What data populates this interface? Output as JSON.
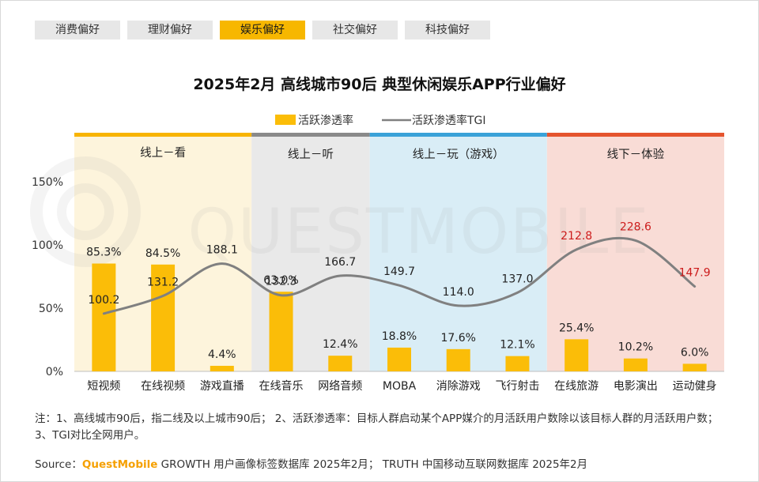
{
  "tabs": [
    {
      "label": "消费偏好",
      "active": false
    },
    {
      "label": "理财偏好",
      "active": false
    },
    {
      "label": "娱乐偏好",
      "active": true
    },
    {
      "label": "社交偏好",
      "active": false
    },
    {
      "label": "科技偏好",
      "active": false
    }
  ],
  "watermark": "QUESTMOBILE",
  "chart_data": {
    "type": "bar",
    "title": "2025年2月 高线城市90后 典型休闲娱乐APP行业偏好",
    "categories": [
      "短视频",
      "在线视频",
      "游戏直播",
      "在线音乐",
      "网络音频",
      "MOBA",
      "消除游戏",
      "飞行射击",
      "在线旅游",
      "电影演出",
      "运动健身"
    ],
    "series": [
      {
        "name": "活跃渗透率",
        "kind": "bar",
        "values": [
          85.3,
          84.5,
          4.4,
          63.0,
          12.4,
          18.8,
          17.6,
          12.1,
          25.4,
          10.2,
          6.0
        ],
        "labels": [
          "85.3%",
          "84.5%",
          "4.4%",
          "63.0%",
          "12.4%",
          "18.8%",
          "17.6%",
          "12.1%",
          "25.4%",
          "10.2%",
          "6.0%"
        ],
        "color": "#fbbd08"
      },
      {
        "name": "活跃渗透率TGI",
        "kind": "line",
        "values": [
          100.2,
          131.2,
          188.1,
          132.3,
          166.7,
          149.7,
          114.0,
          137.0,
          212.8,
          228.6,
          147.9
        ],
        "labels": [
          "100.2",
          "131.2",
          "188.1",
          "132.3",
          "166.7",
          "149.7",
          "114.0",
          "137.0",
          "212.8",
          "228.6",
          "147.9"
        ],
        "highlight_color": "#cc1b1b",
        "color": "#808080"
      }
    ],
    "yaxis": {
      "ticks": [
        0,
        50,
        100,
        150
      ],
      "tick_labels": [
        "0%",
        "50%",
        "100%",
        "150%"
      ],
      "ylim": [
        0,
        150
      ]
    },
    "groups": [
      {
        "label": "线上－看",
        "start": 0,
        "end": 2,
        "color": "#f8b400",
        "bg": "#fdf4dc"
      },
      {
        "label": "线上－听",
        "start": 3,
        "end": 4,
        "color": "#8a8a8a",
        "bg": "#e9e9e9"
      },
      {
        "label": "线上－玩（游戏）",
        "start": 5,
        "end": 7,
        "color": "#3aa2d8",
        "bg": "#d9edf6"
      },
      {
        "label": "线下－体验",
        "start": 8,
        "end": 10,
        "color": "#e5542e",
        "bg": "#f9dcd6"
      }
    ]
  },
  "note": "注：1、高线城市90后，指二线及以上城市90后； 2、活跃渗透率：目标人群启动某个APP媒介的月活跃用户数除以该目标人群的月活跃用户数；3、TGI对比全网用户。",
  "source": {
    "prefix": "Source：",
    "brand": "QuestMobile",
    "text": " GROWTH 用户画像标签数据库 2025年2月； TRUTH 中国移动互联网数据库 2025年2月"
  }
}
